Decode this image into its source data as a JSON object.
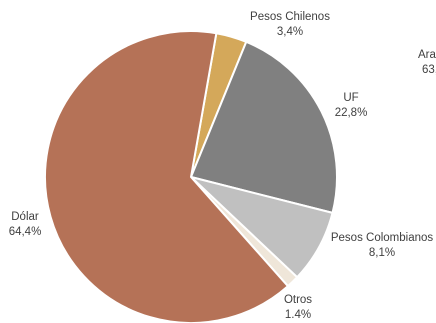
{
  "chart_data": {
    "type": "pie",
    "slices": [
      {
        "name": "Pesos Chilenos",
        "value": 3.4,
        "label": "3,4%",
        "color": "#d4a85a"
      },
      {
        "name": "UF",
        "value": 22.8,
        "label": "22,8%",
        "color": "#808080"
      },
      {
        "name": "Pesos Colombianos",
        "value": 8.1,
        "label": "8,1%",
        "color": "#c0c0c0"
      },
      {
        "name": "Otros",
        "value": 1.4,
        "label": "1.4%",
        "color": "#efe6d9"
      },
      {
        "name": "Dólar",
        "value": 64.4,
        "label": "64,4%",
        "color": "#b57257"
      }
    ],
    "slice_border": "#ffffff",
    "start_angle_deg": 10
  },
  "clipped_label": {
    "name": "Ara",
    "value": "63,"
  }
}
